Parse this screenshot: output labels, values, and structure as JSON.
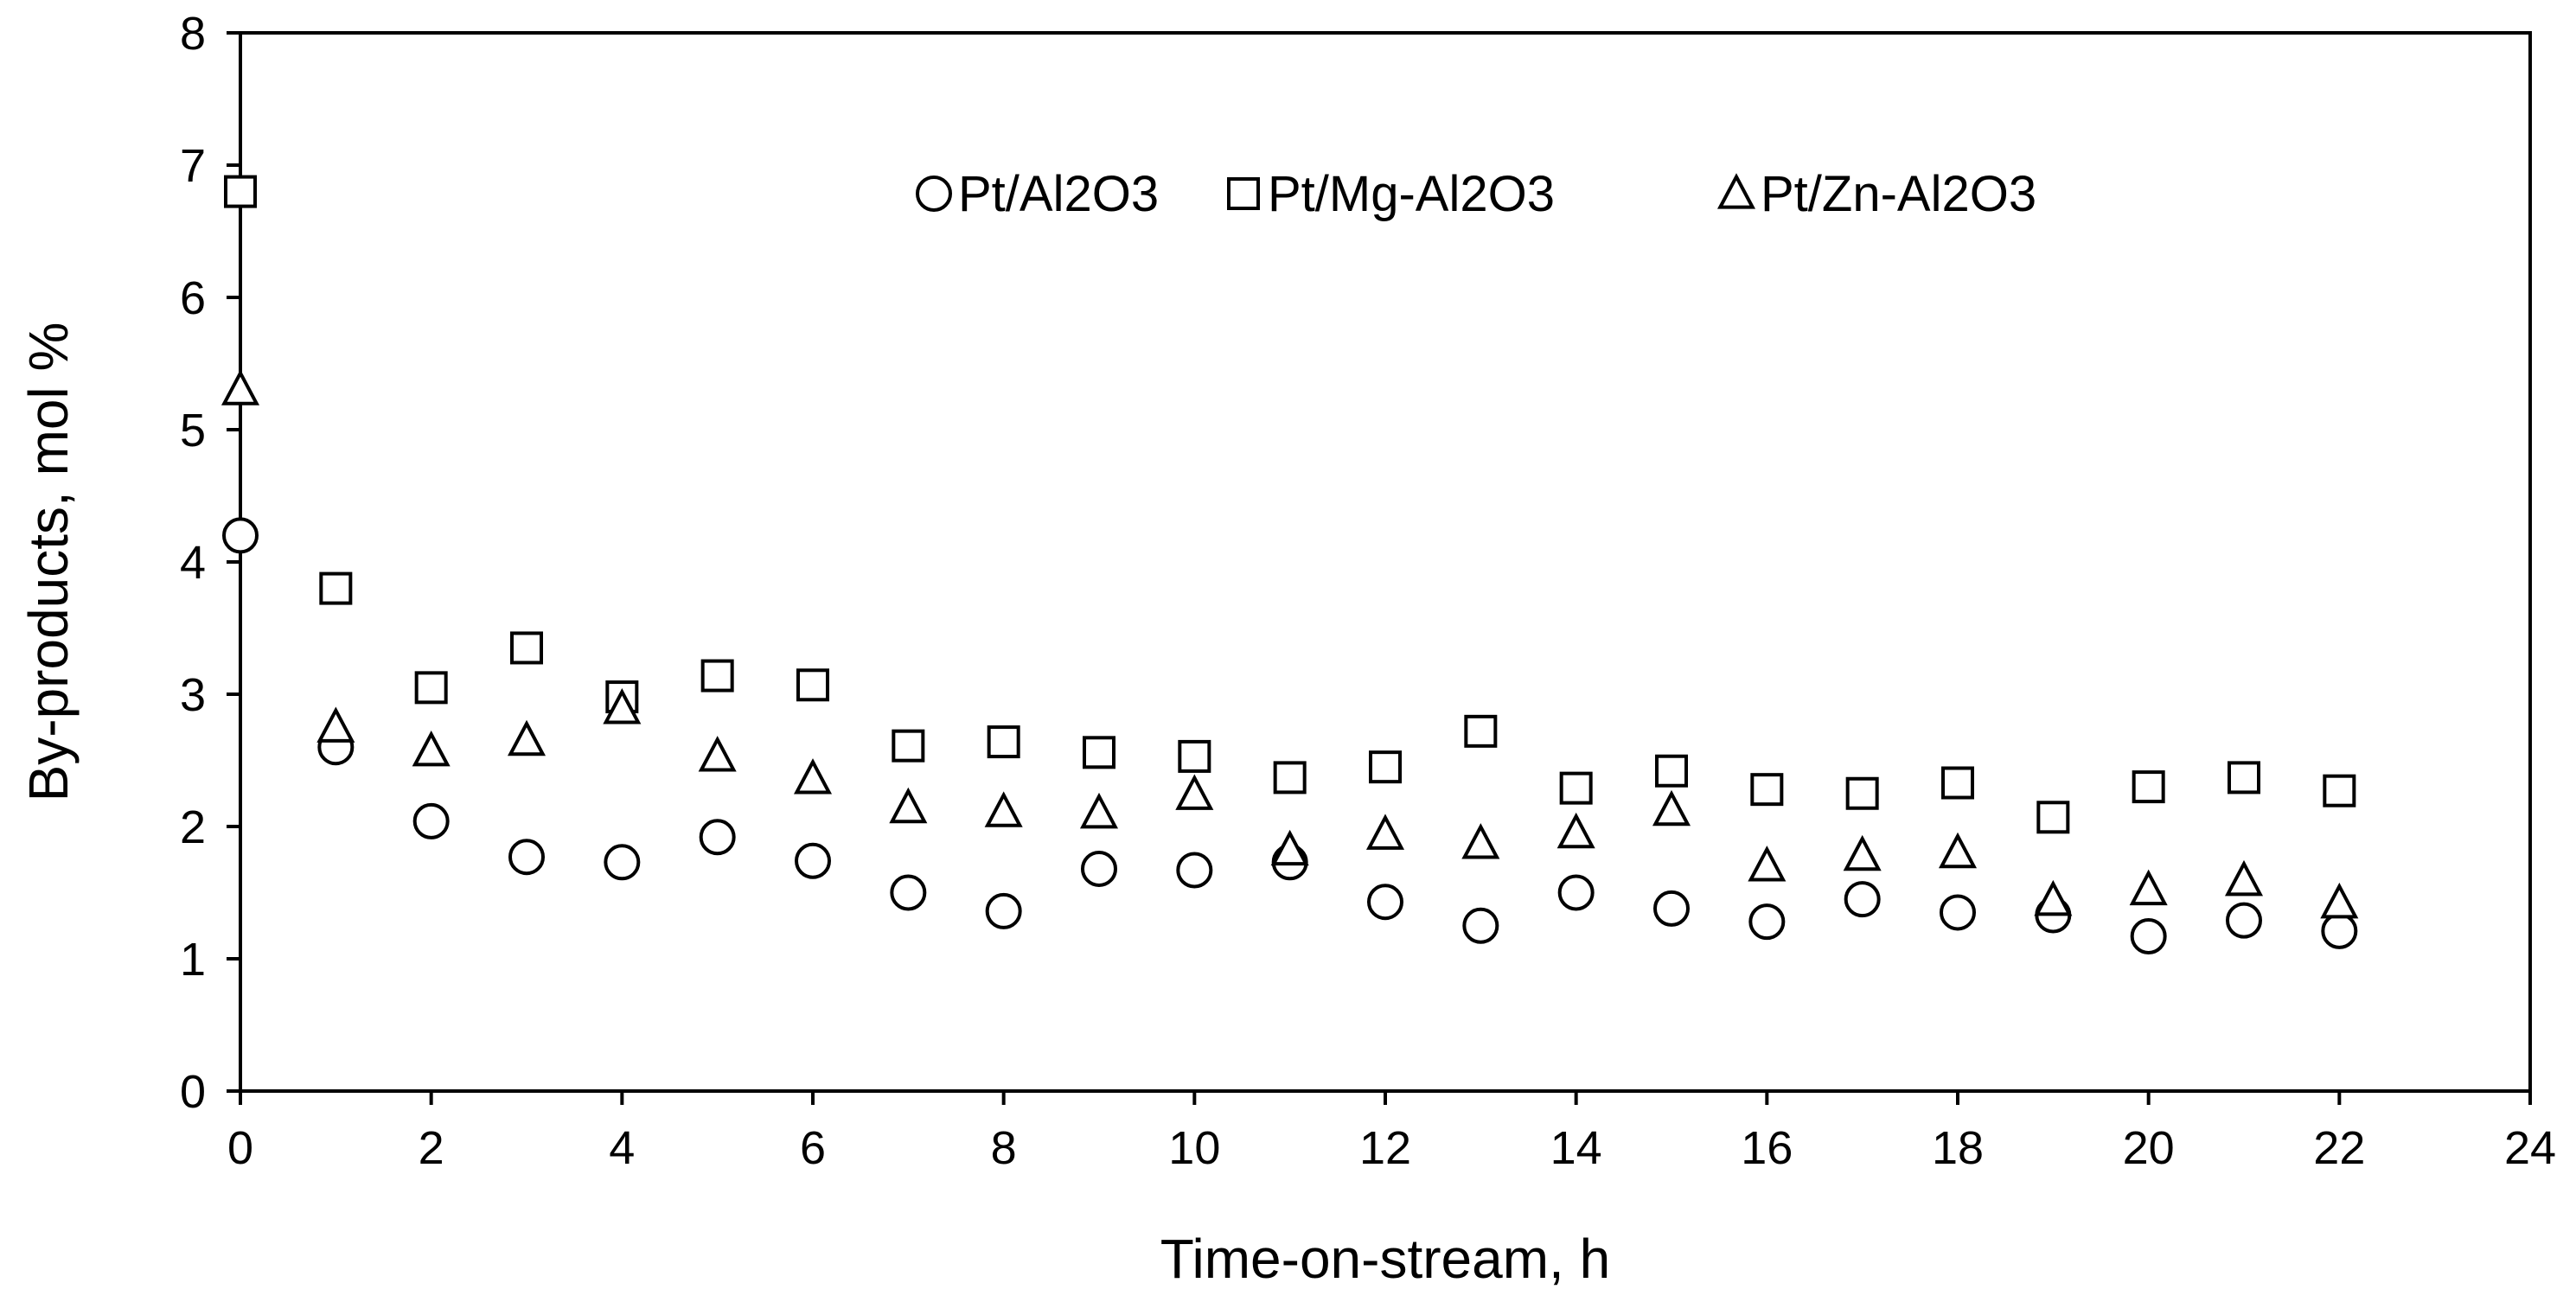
{
  "chart_data": {
    "type": "scatter",
    "title": "",
    "xlabel": "Time-on-stream, h",
    "ylabel": "By-products, mol %",
    "xlim": [
      0,
      24
    ],
    "ylim": [
      0,
      8
    ],
    "xticks": [
      0,
      2,
      4,
      6,
      8,
      10,
      12,
      14,
      16,
      18,
      20,
      22,
      24
    ],
    "yticks": [
      0,
      1,
      2,
      3,
      4,
      5,
      6,
      7,
      8
    ],
    "grid": false,
    "legend_position": "top-center",
    "series": [
      {
        "name": "Pt/Al2O3",
        "marker": "circle",
        "x": [
          0,
          1,
          2,
          3,
          4,
          5,
          6,
          7,
          8,
          9,
          10,
          11,
          12,
          13,
          14,
          15,
          16,
          17,
          18,
          19,
          20,
          21,
          22
        ],
        "y": [
          4.2,
          2.6,
          2.04,
          1.77,
          1.73,
          1.92,
          1.74,
          1.5,
          1.36,
          1.68,
          1.67,
          1.73,
          1.43,
          1.25,
          1.5,
          1.38,
          1.28,
          1.45,
          1.35,
          1.33,
          1.17,
          1.29,
          1.21
        ]
      },
      {
        "name": "Pt/Mg-Al2O3",
        "marker": "square",
        "x": [
          0,
          1,
          2,
          3,
          4,
          5,
          6,
          7,
          8,
          9,
          10,
          11,
          12,
          13,
          14,
          15,
          16,
          17,
          18,
          19,
          20,
          21,
          22
        ],
        "y": [
          6.8,
          3.8,
          3.05,
          3.35,
          2.98,
          3.14,
          3.07,
          2.61,
          2.64,
          2.56,
          2.53,
          2.37,
          2.45,
          2.72,
          2.29,
          2.42,
          2.28,
          2.25,
          2.33,
          2.07,
          2.3,
          2.37,
          2.27
        ]
      },
      {
        "name": "Pt/Zn-Al2O3",
        "marker": "triangle",
        "x": [
          0,
          1,
          2,
          3,
          4,
          5,
          6,
          7,
          8,
          9,
          10,
          11,
          12,
          13,
          14,
          15,
          16,
          17,
          18,
          19,
          20,
          21,
          22
        ],
        "y": [
          5.3,
          2.75,
          2.57,
          2.65,
          2.89,
          2.53,
          2.36,
          2.14,
          2.11,
          2.1,
          2.24,
          1.82,
          1.94,
          1.87,
          1.95,
          2.12,
          1.7,
          1.78,
          1.8,
          1.44,
          1.52,
          1.59,
          1.42
        ]
      }
    ]
  }
}
